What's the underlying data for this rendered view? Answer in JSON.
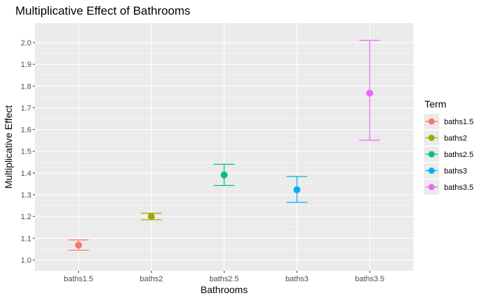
{
  "chart_data": {
    "type": "scatter",
    "title": "Multiplicative Effect of Bathrooms",
    "xlabel": "Bathrooms",
    "ylabel": "Multiplicative Effect",
    "categories": [
      "baths1.5",
      "baths2",
      "baths2.5",
      "baths3",
      "baths3.5"
    ],
    "ylim": [
      0.95,
      2.09
    ],
    "yticks": [
      "1.0",
      "1.1",
      "1.2",
      "1.3",
      "1.4",
      "1.5",
      "1.6",
      "1.7",
      "1.8",
      "1.9",
      "2.0"
    ],
    "grid": true,
    "legend": {
      "title": "Term",
      "placement": "right"
    },
    "points": [
      {
        "term": "baths1.5",
        "estimate": 1.068,
        "lower": 1.045,
        "upper": 1.092,
        "color": "#F8766D"
      },
      {
        "term": "baths2",
        "estimate": 1.2,
        "lower": 1.185,
        "upper": 1.215,
        "color": "#A3A500"
      },
      {
        "term": "baths2.5",
        "estimate": 1.391,
        "lower": 1.343,
        "upper": 1.44,
        "color": "#00BF7D"
      },
      {
        "term": "baths3",
        "estimate": 1.323,
        "lower": 1.265,
        "upper": 1.384,
        "color": "#00B0F6"
      },
      {
        "term": "baths3.5",
        "estimate": 1.767,
        "lower": 1.551,
        "upper": 2.01,
        "color": "#E76BF3"
      }
    ]
  }
}
